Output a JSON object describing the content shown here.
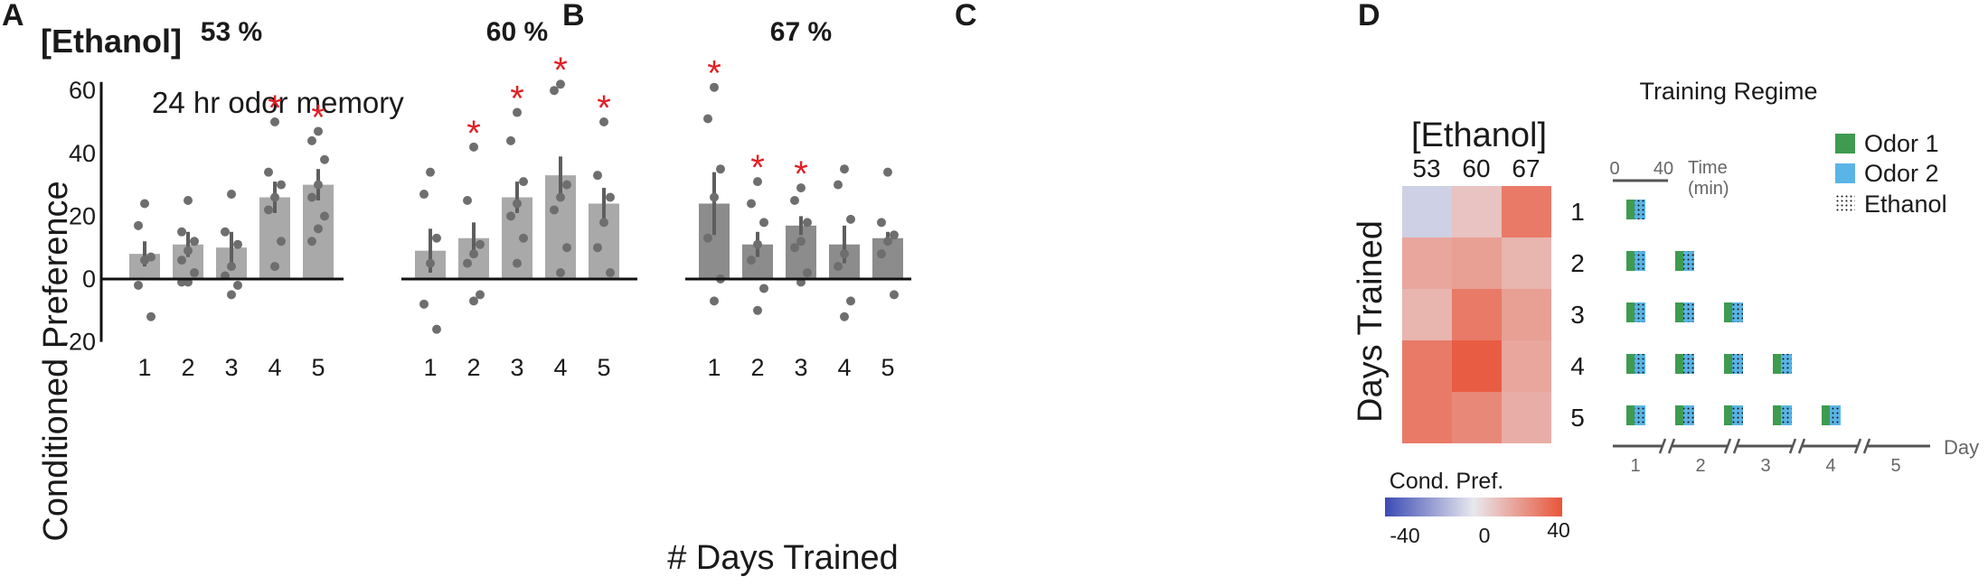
{
  "panel_labels": [
    "A",
    "B",
    "C",
    "D"
  ],
  "panel_a_label": "[Ethanol]",
  "annotation": "24 hr odor memory",
  "ylabel": "Conditioned Preference",
  "xlabel": "# Days Trained",
  "heatmap_title": "[Ethanol]",
  "heatmap_ylabel": "Days Trained",
  "colorbar_label": "Cond. Pref.",
  "colorbar_ticks": [
    "-40",
    "0",
    "40"
  ],
  "regime_title": "Training Regime",
  "scalebar_ticks": [
    "0",
    "40"
  ],
  "time_label_1": "Time",
  "time_label_2": "(min)",
  "day_axis_label": "Day",
  "legend": {
    "odor1": "Odor 1",
    "odor2": "Odor 2",
    "ethanol": "Ethanol"
  },
  "colors": {
    "bar": "#a9a9a9",
    "bar_dark": "#8c8c8c",
    "dot": "#6e6e6e",
    "sig": "#e21f26",
    "odor1": "#3e9b4f",
    "odor2": "#5ab4e6",
    "cmap_neg": "#3c4bb4",
    "cmap_mid": "#e8e8ee",
    "cmap_pos": "#e8553a"
  },
  "chart_data": [
    {
      "type": "bar",
      "title": "53 %",
      "xlabel": "# Days Trained",
      "ylabel": "Conditioned Preference",
      "ylim": [
        -20,
        65
      ],
      "yticks": [
        -20,
        0,
        20,
        40,
        60
      ],
      "categories": [
        "1",
        "2",
        "3",
        "4",
        "5"
      ],
      "values": [
        8,
        11,
        10,
        26,
        30
      ],
      "sem": [
        4,
        4,
        5,
        5,
        5
      ],
      "significant": [
        false,
        false,
        false,
        true,
        true
      ],
      "points": [
        [
          24,
          17,
          7,
          6,
          -2,
          -12
        ],
        [
          25,
          15,
          12,
          9,
          6,
          2,
          -1,
          -1
        ],
        [
          27,
          15,
          11,
          4,
          1,
          -2,
          -5
        ],
        [
          50,
          34,
          30,
          26,
          22,
          12,
          4
        ],
        [
          47,
          44,
          38,
          30,
          26,
          20,
          16,
          12
        ]
      ]
    },
    {
      "type": "bar",
      "title": "60 %",
      "xlabel": "# Days Trained",
      "ylabel": "Conditioned Preference",
      "ylim": [
        -20,
        65
      ],
      "categories": [
        "1",
        "2",
        "3",
        "4",
        "5"
      ],
      "values": [
        9,
        13,
        26,
        33,
        24
      ],
      "sem": [
        7,
        5,
        5,
        6,
        5
      ],
      "significant": [
        false,
        true,
        true,
        true,
        true
      ],
      "points": [
        [
          34,
          27,
          13,
          5,
          -8,
          -16
        ],
        [
          42,
          25,
          11,
          8,
          5,
          -5,
          -7
        ],
        [
          53,
          44,
          31,
          24,
          20,
          13,
          5
        ],
        [
          62,
          60,
          30,
          26,
          22,
          10,
          2
        ],
        [
          50,
          33,
          26,
          18,
          10,
          2
        ]
      ]
    },
    {
      "type": "bar",
      "title": "67 %",
      "xlabel": "# Days Trained",
      "ylabel": "Conditioned Preference",
      "ylim": [
        -20,
        65
      ],
      "categories": [
        "1",
        "2",
        "3",
        "4",
        "5"
      ],
      "values": [
        24,
        11,
        17,
        11,
        13
      ],
      "sem": [
        10,
        4,
        3,
        6,
        2
      ],
      "significant": [
        true,
        true,
        true,
        false,
        false
      ],
      "points": [
        [
          61,
          51,
          35,
          26,
          13,
          0,
          -7
        ],
        [
          31,
          24,
          18,
          11,
          6,
          -3,
          -10
        ],
        [
          29,
          25,
          18,
          12,
          10,
          2,
          -1
        ],
        [
          35,
          30,
          19,
          8,
          4,
          -7,
          -12
        ],
        [
          34,
          18,
          14,
          12,
          8,
          -5
        ]
      ]
    },
    {
      "type": "heatmap",
      "title": "[Ethanol]",
      "xlabel": "[Ethanol]",
      "ylabel": "Days Trained",
      "x": [
        "53",
        "60",
        "67"
      ],
      "y": [
        "1",
        "2",
        "3",
        "4",
        "5"
      ],
      "values": [
        [
          -6,
          10,
          30
        ],
        [
          18,
          20,
          14
        ],
        [
          14,
          30,
          20
        ],
        [
          30,
          38,
          18
        ],
        [
          30,
          26,
          16
        ]
      ],
      "vmin": -40,
      "vmax": 40,
      "colorbar_label": "Cond. Pref."
    },
    {
      "type": "table",
      "title": "Training Regime",
      "days": [
        "1",
        "2",
        "3",
        "4",
        "5"
      ],
      "sessions_per_row": [
        1,
        2,
        3,
        4,
        5
      ],
      "session_length_min": 40,
      "xlabel": "Day"
    }
  ]
}
